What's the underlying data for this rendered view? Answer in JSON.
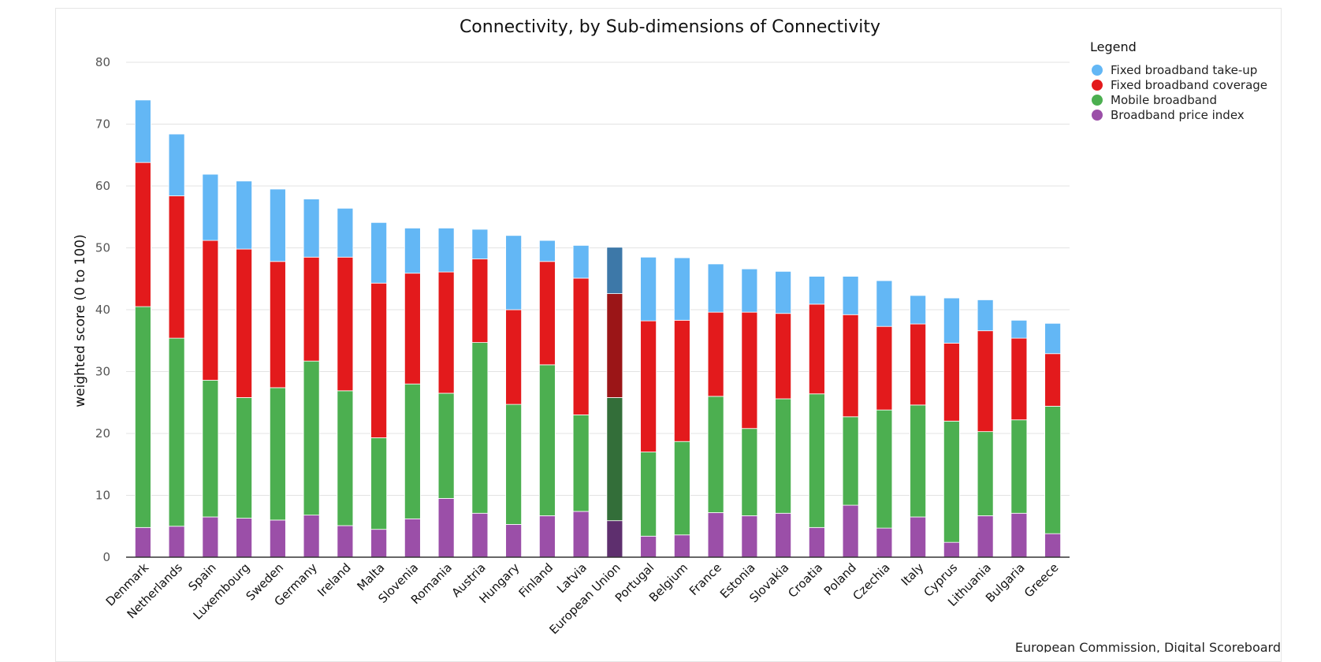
{
  "chart_data": {
    "type": "bar",
    "stacked": true,
    "title": "Connectivity, by Sub-dimensions of Connectivity",
    "xlabel": "",
    "ylabel": "weighted score (0 to 100)",
    "ylim": [
      0,
      80
    ],
    "yticks": [
      0,
      10,
      20,
      30,
      40,
      50,
      60,
      70,
      80
    ],
    "grid": true,
    "legend_title": "Legend",
    "legend_position": "top-right",
    "categories": [
      "Denmark",
      "Netherlands",
      "Spain",
      "Luxembourg",
      "Sweden",
      "Germany",
      "Ireland",
      "Malta",
      "Slovenia",
      "Romania",
      "Austria",
      "Hungary",
      "Finland",
      "Latvia",
      "European Union",
      "Portugal",
      "Belgium",
      "France",
      "Estonia",
      "Slovakia",
      "Croatia",
      "Poland",
      "Czechia",
      "Italy",
      "Cyprus",
      "Lithuania",
      "Bulgaria",
      "Greece"
    ],
    "highlight_category": "European Union",
    "series": [
      {
        "name": "Broadband price index",
        "color": "#9b4fa8",
        "highlight_color": "#5e2f6e",
        "values": [
          4.8,
          5.0,
          6.5,
          6.3,
          6.0,
          6.8,
          5.1,
          4.5,
          6.2,
          9.5,
          7.1,
          5.3,
          6.7,
          7.4,
          5.9,
          3.4,
          3.6,
          7.2,
          6.7,
          7.1,
          4.8,
          8.4,
          4.7,
          6.5,
          2.4,
          6.7,
          7.1,
          3.8
        ]
      },
      {
        "name": "Mobile broadband",
        "color": "#4caf50",
        "highlight_color": "#336e39",
        "values": [
          35.7,
          30.4,
          22.1,
          19.5,
          21.4,
          24.9,
          21.8,
          14.8,
          21.8,
          17.0,
          27.6,
          19.4,
          24.4,
          15.6,
          19.9,
          13.6,
          15.1,
          18.8,
          14.1,
          18.5,
          21.6,
          14.3,
          19.1,
          18.1,
          19.6,
          13.6,
          15.1,
          20.6
        ]
      },
      {
        "name": "Fixed broadband coverage",
        "color": "#e31a1c",
        "highlight_color": "#9b1517",
        "values": [
          23.3,
          23.0,
          22.6,
          24.0,
          20.4,
          16.8,
          21.6,
          25.0,
          17.9,
          19.6,
          13.5,
          15.3,
          16.7,
          22.1,
          16.8,
          21.2,
          19.6,
          13.6,
          18.8,
          13.8,
          14.5,
          16.5,
          13.5,
          13.1,
          12.6,
          16.3,
          13.2,
          8.5
        ]
      },
      {
        "name": "Fixed broadband take-up",
        "color": "#63b7f5",
        "highlight_color": "#3d78a8",
        "values": [
          10.1,
          10.0,
          10.7,
          11.0,
          11.7,
          9.4,
          7.9,
          9.8,
          7.3,
          7.1,
          4.8,
          12.0,
          3.4,
          5.3,
          7.5,
          10.3,
          10.1,
          7.8,
          7.0,
          6.8,
          4.5,
          6.2,
          7.4,
          4.6,
          7.3,
          5.0,
          2.9,
          4.9
        ]
      }
    ],
    "credit": "European Commission, Digital Scoreboard"
  }
}
